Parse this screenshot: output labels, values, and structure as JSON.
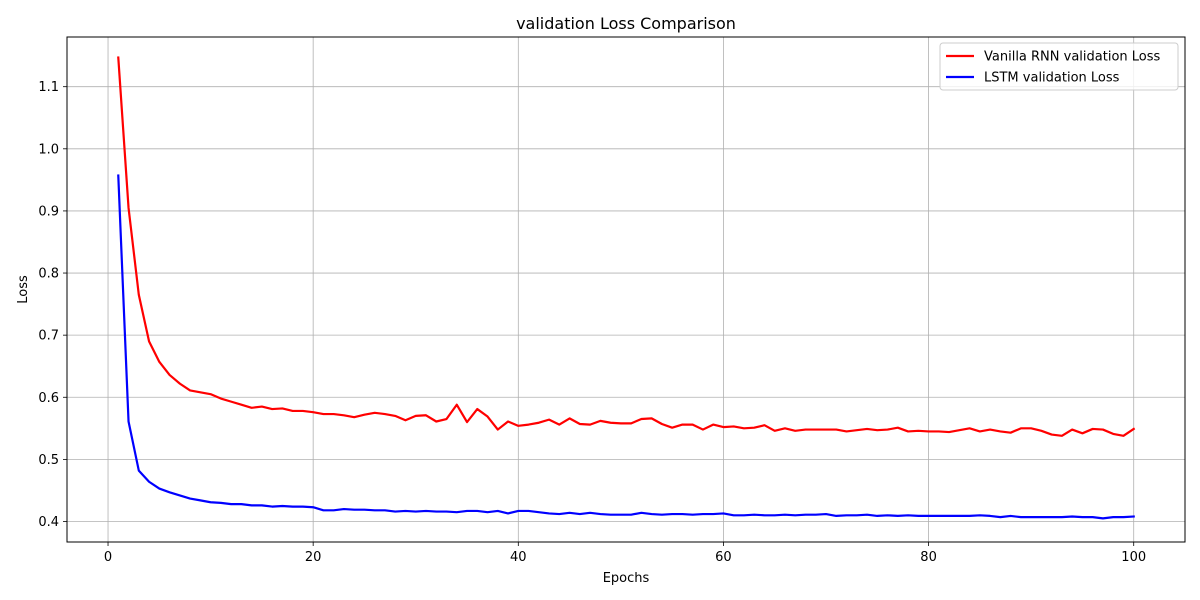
{
  "chart_data": {
    "type": "line",
    "title": "validation Loss Comparison",
    "xlabel": "Epochs",
    "ylabel": "Loss",
    "xlim": [
      -4,
      105
    ],
    "ylim": [
      0.367,
      1.18
    ],
    "xticks": [
      0,
      20,
      40,
      60,
      80,
      100
    ],
    "yticks": [
      0.4,
      0.5,
      0.6,
      0.7,
      0.8,
      0.9,
      1.0,
      1.1
    ],
    "ytick_labels": [
      "0.4",
      "0.5",
      "0.6",
      "0.7",
      "0.8",
      "0.9",
      "1.0",
      "1.1"
    ],
    "grid": true,
    "legend_position": "top-right",
    "x": [
      1,
      2,
      3,
      4,
      5,
      6,
      7,
      8,
      9,
      10,
      11,
      12,
      13,
      14,
      15,
      16,
      17,
      18,
      19,
      20,
      21,
      22,
      23,
      24,
      25,
      26,
      27,
      28,
      29,
      30,
      31,
      32,
      33,
      34,
      35,
      36,
      37,
      38,
      39,
      40,
      41,
      42,
      43,
      44,
      45,
      46,
      47,
      48,
      49,
      50,
      51,
      52,
      53,
      54,
      55,
      56,
      57,
      58,
      59,
      60,
      61,
      62,
      63,
      64,
      65,
      66,
      67,
      68,
      69,
      70,
      71,
      72,
      73,
      74,
      75,
      76,
      77,
      78,
      79,
      80,
      81,
      82,
      83,
      84,
      85,
      86,
      87,
      88,
      89,
      90,
      91,
      92,
      93,
      94,
      95,
      96,
      97,
      98,
      99,
      100
    ],
    "series": [
      {
        "name": "Vanilla RNN validation Loss",
        "color": "#ff0000",
        "values": [
          1.147,
          0.905,
          0.765,
          0.69,
          0.657,
          0.636,
          0.622,
          0.611,
          0.608,
          0.605,
          0.598,
          0.593,
          0.588,
          0.583,
          0.585,
          0.581,
          0.582,
          0.578,
          0.578,
          0.576,
          0.573,
          0.573,
          0.571,
          0.568,
          0.572,
          0.575,
          0.573,
          0.57,
          0.563,
          0.57,
          0.571,
          0.561,
          0.565,
          0.588,
          0.56,
          0.581,
          0.569,
          0.548,
          0.561,
          0.554,
          0.556,
          0.559,
          0.564,
          0.556,
          0.566,
          0.557,
          0.556,
          0.562,
          0.559,
          0.558,
          0.558,
          0.565,
          0.566,
          0.557,
          0.551,
          0.556,
          0.556,
          0.548,
          0.556,
          0.552,
          0.553,
          0.55,
          0.551,
          0.555,
          0.546,
          0.55,
          0.546,
          0.548,
          0.548,
          0.548,
          0.548,
          0.545,
          0.547,
          0.549,
          0.547,
          0.548,
          0.551,
          0.545,
          0.546,
          0.545,
          0.545,
          0.544,
          0.547,
          0.55,
          0.545,
          0.548,
          0.545,
          0.543,
          0.55,
          0.55,
          0.546,
          0.54,
          0.538,
          0.548,
          0.542,
          0.549,
          0.548,
          0.541,
          0.538,
          0.549
        ]
      },
      {
        "name": "LSTM validation Loss",
        "color": "#0000ff",
        "values": [
          0.957,
          0.561,
          0.482,
          0.464,
          0.453,
          0.447,
          0.442,
          0.437,
          0.434,
          0.431,
          0.43,
          0.428,
          0.428,
          0.426,
          0.426,
          0.424,
          0.425,
          0.424,
          0.424,
          0.423,
          0.418,
          0.418,
          0.42,
          0.419,
          0.419,
          0.418,
          0.418,
          0.416,
          0.417,
          0.416,
          0.417,
          0.416,
          0.416,
          0.415,
          0.417,
          0.417,
          0.415,
          0.417,
          0.413,
          0.417,
          0.417,
          0.415,
          0.413,
          0.412,
          0.414,
          0.412,
          0.414,
          0.412,
          0.411,
          0.411,
          0.411,
          0.414,
          0.412,
          0.411,
          0.412,
          0.412,
          0.411,
          0.412,
          0.412,
          0.413,
          0.41,
          0.41,
          0.411,
          0.41,
          0.41,
          0.411,
          0.41,
          0.411,
          0.411,
          0.412,
          0.409,
          0.41,
          0.41,
          0.411,
          0.409,
          0.41,
          0.409,
          0.41,
          0.409,
          0.409,
          0.409,
          0.409,
          0.409,
          0.409,
          0.41,
          0.409,
          0.407,
          0.409,
          0.407,
          0.407,
          0.407,
          0.407,
          0.407,
          0.408,
          0.407,
          0.407,
          0.405,
          0.407,
          0.407,
          0.408
        ]
      }
    ]
  }
}
